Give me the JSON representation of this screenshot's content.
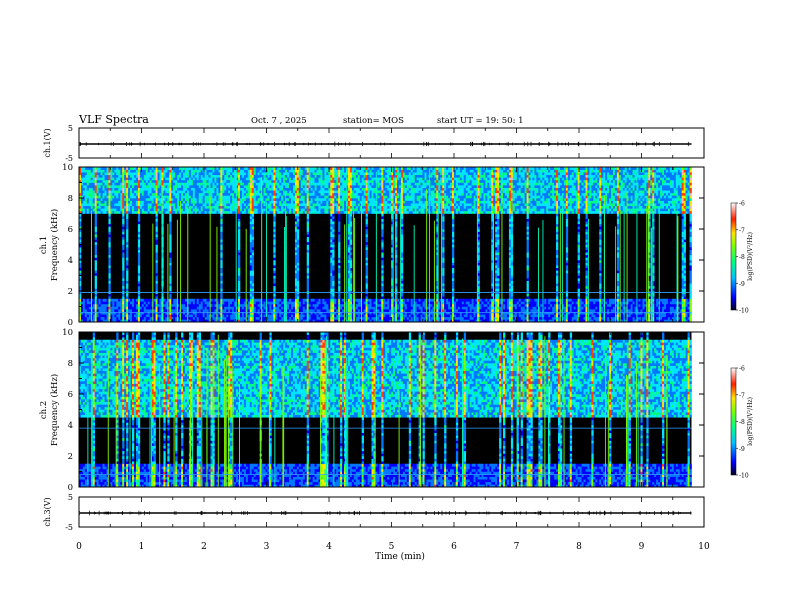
{
  "header": {
    "title": "VLF Spectra",
    "date": "Oct. 7 , 2025",
    "station": "station= MOS",
    "start": "start UT = 19: 50: 1"
  },
  "chart_data": {
    "type": "heatmap",
    "x_axis": {
      "label": "Time (min)",
      "range": [
        0,
        10
      ],
      "ticks": [
        "0",
        "1",
        "2",
        "3",
        "4",
        "5",
        "6",
        "7",
        "8",
        "9",
        "10"
      ],
      "data_end": 9.8
    },
    "panels": [
      {
        "name": "ch1-waveform",
        "type": "line",
        "ylabel": "ch.1(V)",
        "ylim": [
          -5,
          5
        ],
        "yticks": [
          "5",
          "-5"
        ],
        "baseline": 0
      },
      {
        "name": "ch1-spectrogram",
        "type": "heatmap",
        "ylabel_top": "ch.1",
        "ylabel": "Frequency (kHz)",
        "ylim": [
          0,
          10
        ],
        "yticks": [
          "0",
          "2",
          "4",
          "6",
          "8",
          "10"
        ],
        "emission_band_khz": [
          7,
          10
        ],
        "ref_lines_khz": [
          0.6,
          1.9
        ],
        "colorbar": {
          "label": "log(PSD)(V²/Hz)",
          "range": [
            -10,
            -6
          ],
          "ticks": [
            "-6",
            "-7",
            "-8",
            "-9",
            "-10"
          ]
        }
      },
      {
        "name": "ch2-spectrogram",
        "type": "heatmap",
        "ylabel_top": "ch.2",
        "ylabel": "Frequency (kHz)",
        "ylim": [
          0,
          10
        ],
        "yticks": [
          "0",
          "2",
          "4",
          "6",
          "8",
          "10"
        ],
        "emission_band_khz": [
          4.5,
          9.5
        ],
        "ref_lines_khz": [
          0.8,
          3.8
        ],
        "colorbar": {
          "label": "log(PSD)(V²/Hz)",
          "range": [
            -10,
            -6
          ],
          "ticks": [
            "-6",
            "-7",
            "-8",
            "-9",
            "-10"
          ]
        }
      },
      {
        "name": "ch3-waveform",
        "type": "line",
        "ylabel": "ch.3(V)",
        "ylim": [
          -5,
          5
        ],
        "yticks": [
          "5",
          "-5"
        ],
        "baseline": 0
      }
    ],
    "colormap": [
      "#000000",
      "#00008c",
      "#0000ff",
      "#0078ff",
      "#00e6ff",
      "#00ff80",
      "#80ff00",
      "#ffe600",
      "#ff4000",
      "#ffb0b0",
      "#ffffff"
    ]
  }
}
